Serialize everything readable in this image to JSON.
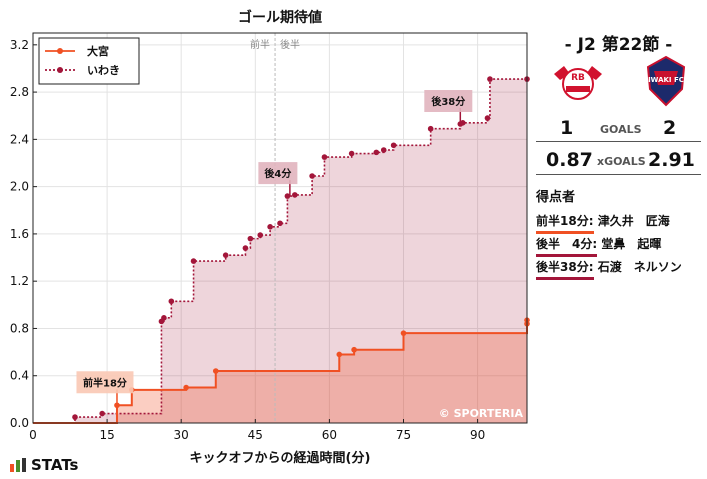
{
  "chart_data": {
    "type": "line",
    "title": "ゴール期待値",
    "xlabel": "キックオフからの経過時間(分)",
    "ylabel": "",
    "xlim": [
      0,
      100
    ],
    "ylim": [
      0,
      3.3
    ],
    "xticks": [
      0,
      15,
      30,
      45,
      60,
      75,
      90
    ],
    "yticks": [
      0.0,
      0.4,
      0.8,
      1.2,
      1.6,
      2.0,
      2.4,
      2.8,
      3.2
    ],
    "legend_position": "top-left",
    "halftime_labels": [
      "前半",
      "後半"
    ],
    "watermark": "© SPORTERIA",
    "series": [
      {
        "name": "大宮",
        "color": "#f05023",
        "points": [
          [
            17,
            0.15
          ],
          [
            20,
            0.28
          ],
          [
            31,
            0.3
          ],
          [
            37,
            0.44
          ],
          [
            62,
            0.58
          ],
          [
            65,
            0.62
          ],
          [
            75,
            0.76
          ],
          [
            100,
            0.84
          ],
          [
            100,
            0.87
          ]
        ]
      },
      {
        "name": "いわき",
        "color": "#a3163a",
        "points": [
          [
            8.5,
            0.05
          ],
          [
            14,
            0.08
          ],
          [
            26,
            0.86
          ],
          [
            26.5,
            0.89
          ],
          [
            28,
            1.03
          ],
          [
            32.5,
            1.37
          ],
          [
            39,
            1.42
          ],
          [
            43,
            1.48
          ],
          [
            44,
            1.56
          ],
          [
            46,
            1.59
          ],
          [
            48,
            1.66
          ],
          [
            50,
            1.69
          ],
          [
            51.5,
            1.92
          ],
          [
            53,
            1.93
          ],
          [
            56.5,
            2.09
          ],
          [
            59,
            2.25
          ],
          [
            64.5,
            2.28
          ],
          [
            69.5,
            2.29
          ],
          [
            71,
            2.31
          ],
          [
            73,
            2.35
          ],
          [
            80.5,
            2.49
          ],
          [
            86.5,
            2.53
          ],
          [
            87,
            2.54
          ],
          [
            92,
            2.58
          ],
          [
            92.5,
            2.91
          ],
          [
            100,
            2.91
          ]
        ]
      }
    ],
    "annotations": [
      {
        "text": "前半18分",
        "x": 17,
        "y": 0.15,
        "color": "#f05023"
      },
      {
        "text": "後4分",
        "x": 52,
        "y": 1.92,
        "color": "#a3163a"
      },
      {
        "text": "後38分",
        "x": 86.5,
        "y": 2.53,
        "color": "#a3163a"
      }
    ]
  },
  "panel": {
    "matchday": "- J2 第22節 -",
    "home_score": "1",
    "away_score": "2",
    "goals_label": "GOALS",
    "home_xg": "0.87",
    "away_xg": "2.91",
    "xg_label": "xGOALS",
    "scorers_title": "得点者",
    "scorers": [
      {
        "time": "前半18分:",
        "name": "津久井　匠海",
        "color": "#f05023"
      },
      {
        "time": "後半　4分:",
        "name": "堂鼻　起暉",
        "color": "#a3163a"
      },
      {
        "time": "後半38分:",
        "name": "石渡　ネルソン",
        "color": "#a3163a"
      }
    ],
    "home_crest_text": "RB",
    "away_crest_text": "IWAKI FC"
  },
  "footer": {
    "brand": "STATs"
  }
}
